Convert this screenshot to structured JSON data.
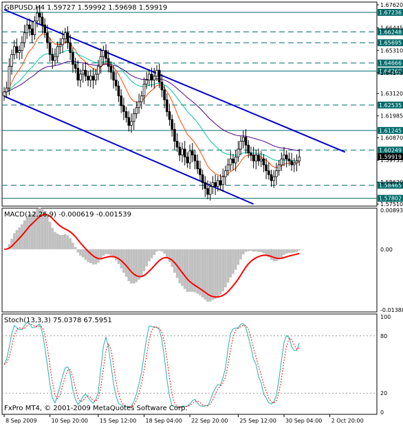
{
  "chart_data": [
    {
      "panel": "price",
      "type": "candlestick",
      "title": "GBPUSD,H4  1.59727 1.59992 1.59698 1.59919",
      "ylim": [
        1.5751,
        1.6762
      ],
      "y_tick_labels": [
        "1.67620",
        "1.66445",
        "1.65310",
        "1.64175",
        "1.63120",
        "1.61985",
        "1.60870",
        "1.59735",
        "1.58620",
        "1.57510"
      ],
      "horizontal_levels": [
        {
          "value": 1.67236,
          "label": "1.67236",
          "style": "solid"
        },
        {
          "value": 1.66248,
          "label": "1.66248",
          "style": "dashed"
        },
        {
          "value": 1.65695,
          "label": "1.65695",
          "style": "dashed"
        },
        {
          "value": 1.64666,
          "label": "1.64666",
          "style": "dashed"
        },
        {
          "value": 1.6426,
          "label": "1.64260",
          "style": "solid"
        },
        {
          "value": 1.62535,
          "label": "1.62535",
          "style": "dashed"
        },
        {
          "value": 1.61245,
          "label": "1.61245",
          "style": "solid"
        },
        {
          "value": 1.60249,
          "label": "1.60249",
          "style": "dashed"
        },
        {
          "value": 1.58465,
          "label": "1.58465",
          "style": "dashed"
        },
        {
          "value": 1.57802,
          "label": "1.57802",
          "style": "solid"
        }
      ],
      "current_price": {
        "value": 1.59919,
        "label": "1.59919"
      },
      "channel_lines": [
        {
          "name": "upper",
          "from": [
            0,
            1.6738
          ],
          "to": [
            134,
            1.6015
          ]
        },
        {
          "name": "lower",
          "from": [
            0,
            1.6298
          ],
          "to": [
            98,
            1.5751
          ]
        }
      ],
      "close": [
        1.632,
        1.634,
        1.645,
        1.651,
        1.655,
        1.652,
        1.653,
        1.657,
        1.662,
        1.666,
        1.664,
        1.661,
        1.668,
        1.672,
        1.67,
        1.666,
        1.662,
        1.657,
        1.651,
        1.648,
        1.65,
        1.655,
        1.656,
        1.659,
        1.662,
        1.657,
        1.652,
        1.646,
        1.644,
        1.638,
        1.641,
        1.643,
        1.64,
        1.638,
        1.64,
        1.638,
        1.641,
        1.645,
        1.65,
        1.653,
        1.649,
        1.645,
        1.642,
        1.638,
        1.635,
        1.63,
        1.625,
        1.622,
        1.619,
        1.615,
        1.617,
        1.621,
        1.624,
        1.627,
        1.63,
        1.636,
        1.638,
        1.641,
        1.638,
        1.64,
        1.643,
        1.637,
        1.633,
        1.628,
        1.622,
        1.618,
        1.613,
        1.607,
        1.604,
        1.6,
        1.603,
        1.599,
        1.596,
        1.602,
        1.6,
        1.597,
        1.593,
        1.59,
        1.586,
        1.583,
        1.58,
        1.584,
        1.586,
        1.584,
        1.587,
        1.585,
        1.589,
        1.592,
        1.595,
        1.598,
        1.596,
        1.599,
        1.603,
        1.607,
        1.609,
        1.605,
        1.601,
        1.6,
        1.597,
        1.6,
        1.597,
        1.598,
        1.595,
        1.592,
        1.59,
        1.587,
        1.589,
        1.592,
        1.595,
        1.598,
        1.6,
        1.598,
        1.597,
        1.595,
        1.596,
        1.597,
        1.599
      ],
      "moving_averages": [
        {
          "name": "fast",
          "color": "#ff4500"
        },
        {
          "name": "medium",
          "color": "#00c8a0"
        },
        {
          "name": "slow",
          "color": "#4b0082"
        }
      ],
      "x_tick_labels": [
        "8 Sep 2009",
        "10 Sep 20:00",
        "15 Sep 12:00",
        "18 Sep 04:00",
        "22 Sep 20:00",
        "25 Sep 12:00",
        "30 Sep 04:00",
        "2 Oct 20:00"
      ],
      "x_tick_index": [
        0,
        18,
        37,
        55,
        73,
        92,
        110,
        128
      ]
    },
    {
      "panel": "macd",
      "type": "bar+line",
      "title": "MACD(12,26,9) -0.000619 -0.001539",
      "ylim": [
        -0.01388,
        0.00893
      ],
      "y_tick_labels": [
        "0.00893",
        "0.00",
        "-0.01388"
      ],
      "histogram_color": "#c0c0c0",
      "signal_color": "#ff0000"
    },
    {
      "panel": "stochastic",
      "type": "line",
      "title": "Stoch(13,3,3) 75.0378 67.5951",
      "ylim": [
        0,
        100
      ],
      "y_tick_labels": [
        "100",
        "80",
        "20",
        "0"
      ],
      "main_color": "#20b2aa",
      "signal_color": "#ff0000"
    }
  ],
  "copyright": "FxPro MT4, © 2001-2009 MetaQuotes Software Corp.",
  "colors": {
    "background": "#ffffff",
    "grid": "#000000",
    "candles": "#000000",
    "channel": "#0000cd",
    "levels": "#006a6a",
    "tag_bg": "#006a6a"
  }
}
